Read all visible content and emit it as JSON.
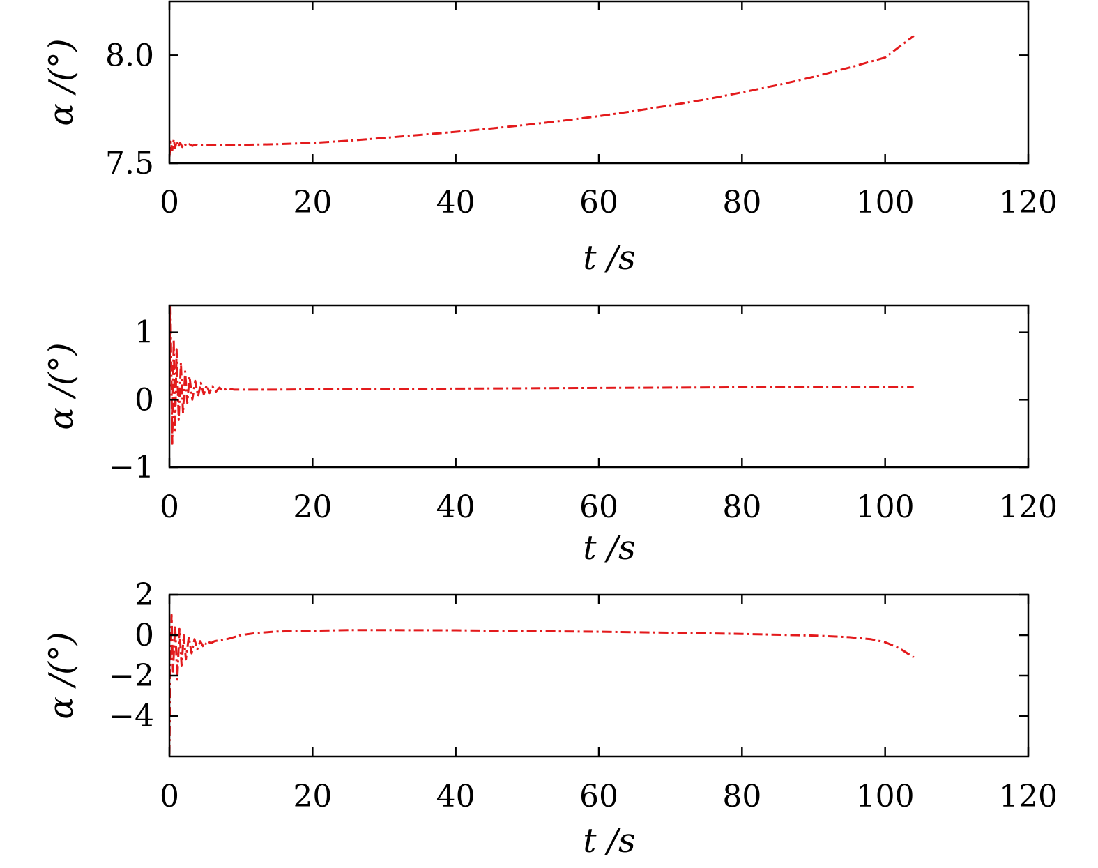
{
  "line_color": "#e31a1c",
  "chart_data": [
    {
      "type": "line",
      "xlabel": "t /s",
      "ylabel": "α /(°)",
      "xlim": [
        0,
        120
      ],
      "ylim": [
        7.5,
        8.25
      ],
      "xticks": [
        0,
        20,
        40,
        60,
        80,
        100,
        120
      ],
      "xtick_labels": [
        "0",
        "20",
        "40",
        "60",
        "80",
        "100",
        "120"
      ],
      "yticks": [
        7.5,
        8.0
      ],
      "ytick_labels": [
        "7.5",
        "8.0"
      ],
      "grid": false,
      "series": [
        {
          "x": [
            0,
            0.2,
            0.4,
            0.6,
            0.8,
            1.0,
            1.2,
            1.5,
            1.8,
            2.1,
            2.4,
            2.8,
            3.2,
            3.6,
            4,
            5,
            6,
            8,
            10,
            15,
            20,
            25,
            30,
            35,
            40,
            45,
            50,
            55,
            60,
            65,
            70,
            75,
            80,
            85,
            90,
            95,
            100,
            104
          ],
          "y": [
            7.53,
            7.6,
            7.56,
            7.61,
            7.57,
            7.6,
            7.575,
            7.595,
            7.575,
            7.59,
            7.578,
            7.588,
            7.58,
            7.586,
            7.582,
            7.583,
            7.583,
            7.584,
            7.585,
            7.588,
            7.594,
            7.604,
            7.617,
            7.631,
            7.645,
            7.661,
            7.678,
            7.697,
            7.718,
            7.742,
            7.768,
            7.796,
            7.828,
            7.862,
            7.9,
            7.943,
            7.99,
            8.09
          ]
        }
      ]
    },
    {
      "type": "line",
      "xlabel": "t /s",
      "ylabel": "α /(°)",
      "xlim": [
        0,
        120
      ],
      "ylim": [
        -1,
        1.4
      ],
      "xticks": [
        0,
        20,
        40,
        60,
        80,
        100,
        120
      ],
      "xtick_labels": [
        "0",
        "20",
        "40",
        "60",
        "80",
        "100",
        "120"
      ],
      "yticks": [
        -1,
        0,
        1
      ],
      "ytick_labels": [
        "−1",
        "0",
        "1"
      ],
      "grid": false,
      "series": [
        {
          "x": [
            0,
            0.15,
            0.4,
            0.6,
            0.8,
            1.0,
            1.3,
            1.6,
            1.9,
            2.2,
            2.5,
            2.8,
            3.2,
            3.6,
            4.0,
            4.4,
            4.8,
            5.2,
            5.6,
            6.0,
            6.5,
            7.0,
            7.5,
            8.0,
            9.0,
            10,
            15,
            20,
            30,
            40,
            50,
            60,
            70,
            80,
            90,
            100,
            104
          ],
          "y": [
            0.0,
            1.4,
            -0.65,
            0.9,
            -0.45,
            0.75,
            -0.3,
            0.55,
            -0.2,
            0.42,
            -0.05,
            0.35,
            0.0,
            0.28,
            0.05,
            0.25,
            0.08,
            0.22,
            0.1,
            0.2,
            0.12,
            0.18,
            0.13,
            0.17,
            0.15,
            0.15,
            0.15,
            0.155,
            0.16,
            0.165,
            0.17,
            0.175,
            0.18,
            0.185,
            0.19,
            0.195,
            0.195
          ]
        }
      ]
    },
    {
      "type": "line",
      "xlabel": "t /s",
      "ylabel": "α /(°)",
      "xlim": [
        0,
        120
      ],
      "ylim": [
        -6,
        2
      ],
      "xticks": [
        0,
        20,
        40,
        60,
        80,
        100,
        120
      ],
      "xtick_labels": [
        "0",
        "20",
        "40",
        "60",
        "80",
        "100",
        "120"
      ],
      "yticks": [
        -4,
        -2,
        0,
        2
      ],
      "ytick_labels": [
        "−4",
        "−2",
        "0",
        "2"
      ],
      "grid": false,
      "series": [
        {
          "x": [
            0,
            0.1,
            0.3,
            0.5,
            0.8,
            1.1,
            1.4,
            1.7,
            2.0,
            2.3,
            2.7,
            3.1,
            3.5,
            3.9,
            4.3,
            4.8,
            5.3,
            5.8,
            6.3,
            7,
            8,
            9,
            10,
            12,
            15,
            20,
            25,
            30,
            40,
            50,
            60,
            70,
            80,
            90,
            95,
            98,
            100,
            102,
            104
          ],
          "y": [
            -5.9,
            -2.5,
            1.0,
            -1.8,
            0.5,
            -2.2,
            0.3,
            -1.5,
            0.0,
            -1.2,
            -0.1,
            -0.9,
            -0.2,
            -0.7,
            -0.3,
            -0.6,
            -0.3,
            -0.4,
            -0.3,
            -0.25,
            -0.2,
            -0.1,
            0.0,
            0.1,
            0.18,
            0.22,
            0.25,
            0.25,
            0.24,
            0.2,
            0.17,
            0.12,
            0.06,
            -0.02,
            -0.1,
            -0.2,
            -0.35,
            -0.65,
            -1.1
          ]
        }
      ]
    }
  ]
}
